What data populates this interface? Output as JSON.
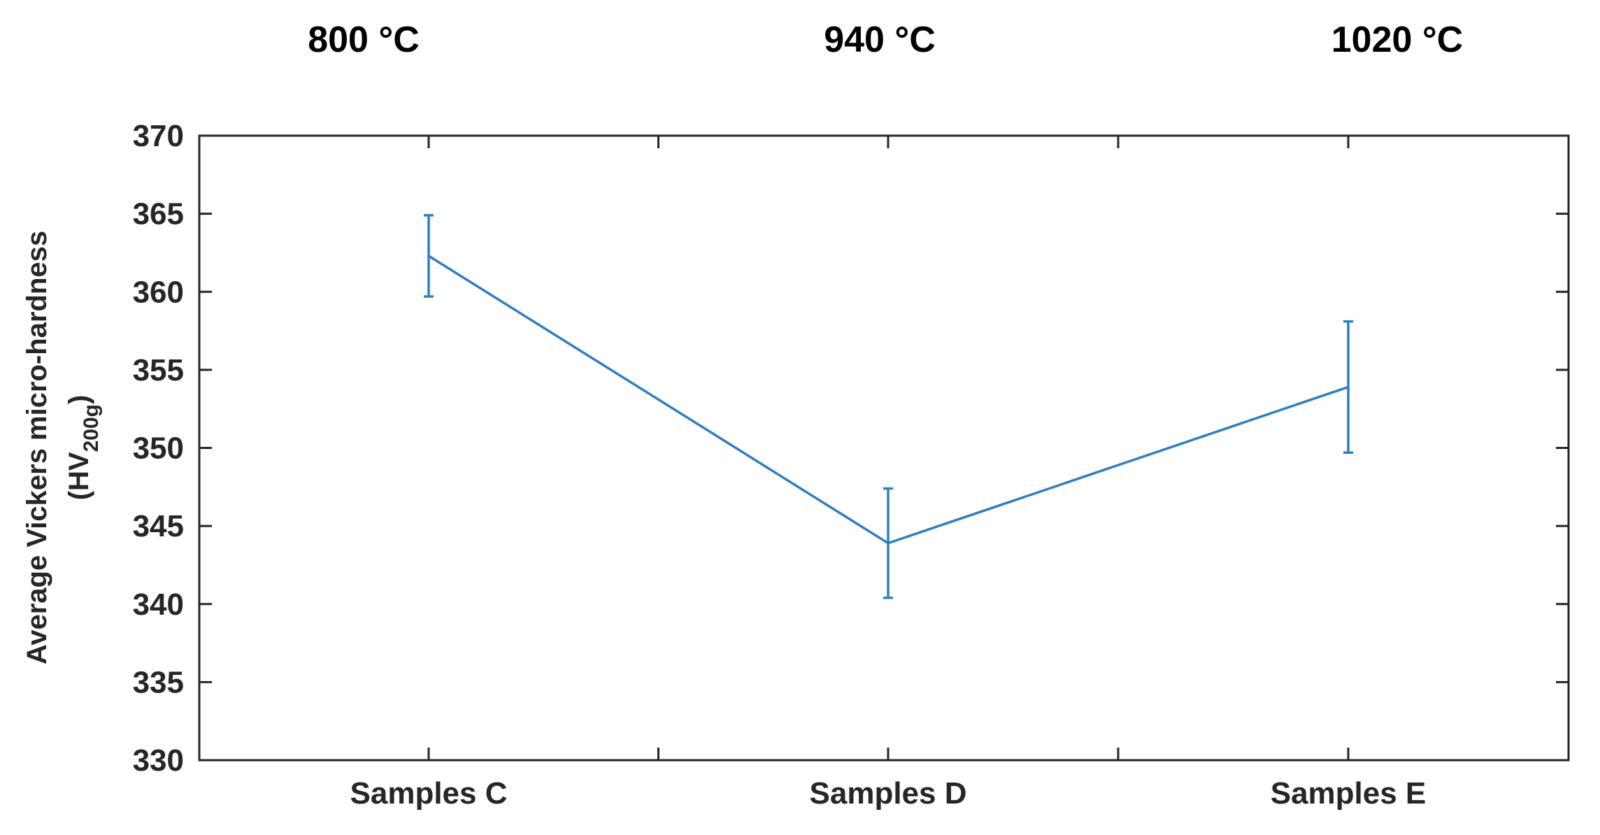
{
  "chart_data": {
    "type": "line",
    "categories": [
      "Samples C",
      "Samples D",
      "Samples E"
    ],
    "top_labels": [
      "800 °C",
      "940 °C",
      "1020 °C"
    ],
    "series": [
      {
        "values": [
          362.3,
          343.9,
          353.9
        ],
        "error": [
          2.6,
          3.5,
          4.2
        ],
        "color": "#2f7fc1"
      }
    ],
    "ylabel_line1": "Average Vickers micro-hardness",
    "ylabel_line2_main": "(HV",
    "ylabel_line2_sub": "200g",
    "ylabel_line2_close": ")",
    "yticks": [
      "330",
      "335",
      "340",
      "345",
      "350",
      "355",
      "360",
      "365",
      "370"
    ],
    "ylim": [
      330,
      370
    ],
    "grid": false
  }
}
